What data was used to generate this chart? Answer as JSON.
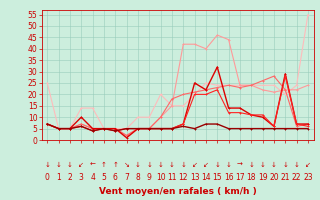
{
  "bg_color": "#cceedd",
  "grid_color": "#99ccbb",
  "xlabel": "Vent moyen/en rafales ( km/h )",
  "xlabel_color": "#cc0000",
  "xlabel_fontsize": 6.5,
  "xlim": [
    -0.5,
    23.5
  ],
  "ylim": [
    0,
    57
  ],
  "yticks": [
    0,
    5,
    10,
    15,
    20,
    25,
    30,
    35,
    40,
    45,
    50,
    55
  ],
  "xticks": [
    0,
    1,
    2,
    3,
    4,
    5,
    6,
    7,
    8,
    9,
    10,
    11,
    12,
    13,
    14,
    15,
    16,
    17,
    18,
    19,
    20,
    21,
    22,
    23
  ],
  "tick_fontsize": 5.5,
  "series": [
    {
      "x": [
        0,
        1,
        2,
        3,
        4,
        5,
        6,
        7,
        8,
        9,
        10,
        11,
        12,
        13,
        14,
        15,
        16,
        17,
        18,
        19,
        20,
        21,
        22,
        23
      ],
      "y": [
        25,
        5,
        5,
        14,
        14,
        5,
        5,
        5,
        10,
        10,
        20,
        15,
        15,
        20,
        25,
        24,
        24,
        24,
        24,
        24,
        24,
        20,
        24,
        55
      ],
      "color": "#ffbbbb",
      "lw": 0.8,
      "marker": "+"
    },
    {
      "x": [
        0,
        1,
        2,
        3,
        4,
        5,
        6,
        7,
        8,
        9,
        10,
        11,
        12,
        13,
        14,
        15,
        16,
        17,
        18,
        19,
        20,
        21,
        22,
        23
      ],
      "y": [
        7,
        5,
        5,
        7,
        5,
        5,
        5,
        2,
        5,
        5,
        10,
        15,
        42,
        42,
        40,
        46,
        44,
        24,
        24,
        22,
        21,
        22,
        22,
        24
      ],
      "color": "#ff9999",
      "lw": 0.8,
      "marker": "+"
    },
    {
      "x": [
        0,
        1,
        2,
        3,
        4,
        5,
        6,
        7,
        8,
        9,
        10,
        11,
        12,
        13,
        14,
        15,
        16,
        17,
        18,
        19,
        20,
        21,
        22,
        23
      ],
      "y": [
        7,
        5,
        5,
        7,
        5,
        5,
        5,
        2,
        5,
        5,
        10,
        18,
        20,
        21,
        22,
        23,
        24,
        23,
        24,
        26,
        28,
        22,
        6,
        7
      ],
      "color": "#ff6666",
      "lw": 0.8,
      "marker": "+"
    },
    {
      "x": [
        0,
        1,
        2,
        3,
        4,
        5,
        6,
        7,
        8,
        9,
        10,
        11,
        12,
        13,
        14,
        15,
        16,
        17,
        18,
        19,
        20,
        21,
        22,
        23
      ],
      "y": [
        7,
        5,
        5,
        10,
        5,
        5,
        5,
        1,
        5,
        5,
        5,
        5,
        7,
        25,
        22,
        32,
        14,
        14,
        11,
        10,
        6,
        29,
        7,
        7
      ],
      "color": "#dd0000",
      "lw": 1.0,
      "marker": "+"
    },
    {
      "x": [
        0,
        1,
        2,
        3,
        4,
        5,
        6,
        7,
        8,
        9,
        10,
        11,
        12,
        13,
        14,
        15,
        16,
        17,
        18,
        19,
        20,
        21,
        22,
        23
      ],
      "y": [
        7,
        5,
        5,
        6,
        4,
        5,
        4,
        5,
        5,
        5,
        5,
        5,
        7,
        20,
        20,
        22,
        12,
        12,
        11,
        11,
        6,
        28,
        7,
        6
      ],
      "color": "#ff2222",
      "lw": 0.8,
      "marker": "+"
    },
    {
      "x": [
        0,
        1,
        2,
        3,
        4,
        5,
        6,
        7,
        8,
        9,
        10,
        11,
        12,
        13,
        14,
        15,
        16,
        17,
        18,
        19,
        20,
        21,
        22,
        23
      ],
      "y": [
        7,
        5,
        5,
        6,
        4,
        5,
        4,
        5,
        5,
        5,
        5,
        5,
        6,
        5,
        7,
        7,
        5,
        5,
        5,
        5,
        5,
        5,
        5,
        5
      ],
      "color": "#990000",
      "lw": 1.0,
      "marker": "+"
    }
  ],
  "arrow_symbols": [
    "↓",
    "↓",
    "↓",
    "↙",
    "←",
    "↑",
    "↑",
    "↘",
    "↓",
    "↓",
    "↓",
    "↓",
    "↓",
    "↙",
    "↙",
    "↓",
    "↓",
    "→",
    "↓",
    "↓",
    "↓",
    "↓",
    "↓",
    "↙"
  ]
}
